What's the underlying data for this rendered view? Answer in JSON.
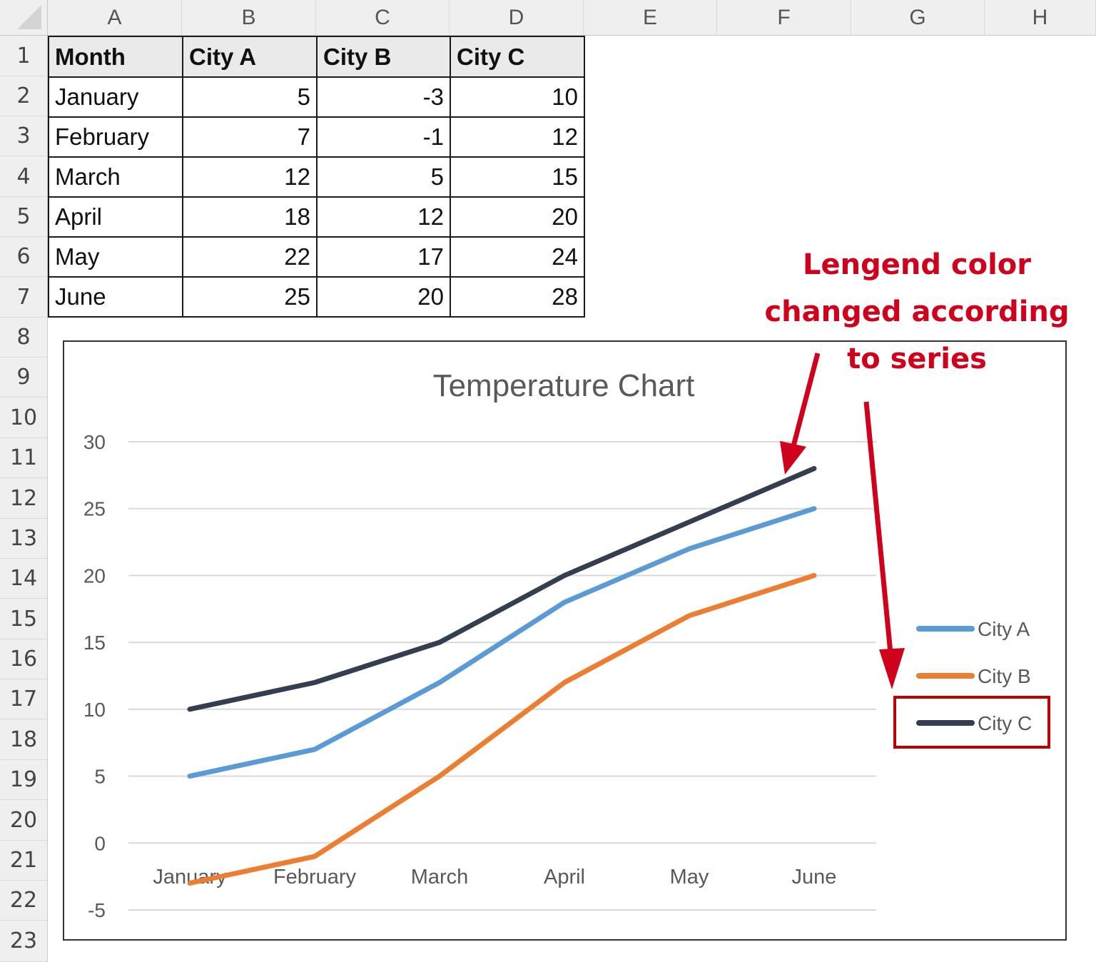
{
  "spreadsheet": {
    "columns": [
      "A",
      "B",
      "C",
      "D",
      "E",
      "F",
      "G",
      "H"
    ],
    "rows": [
      "1",
      "2",
      "3",
      "4",
      "5",
      "6",
      "7",
      "8",
      "9",
      "10",
      "11",
      "12",
      "13",
      "14",
      "15",
      "16",
      "17",
      "18",
      "19",
      "20",
      "21",
      "22",
      "23"
    ],
    "table": {
      "headers": [
        "Month",
        "City A",
        "City B",
        "City C"
      ],
      "rows": [
        [
          "January",
          "5",
          "-3",
          "10"
        ],
        [
          "February",
          "7",
          "-1",
          "12"
        ],
        [
          "March",
          "12",
          "5",
          "15"
        ],
        [
          "April",
          "18",
          "12",
          "20"
        ],
        [
          "May",
          "22",
          "17",
          "24"
        ],
        [
          "June",
          "25",
          "20",
          "28"
        ]
      ]
    }
  },
  "annotation": {
    "line1": "Lengend color",
    "line2": "changed according",
    "line3": "to series",
    "color": "#d0021b"
  },
  "chart_data": {
    "type": "line",
    "title": "Temperature Chart",
    "categories": [
      "January",
      "February",
      "March",
      "April",
      "May",
      "June"
    ],
    "series": [
      {
        "name": "City A",
        "values": [
          5,
          7,
          12,
          18,
          22,
          25
        ],
        "color": "#5b9bd5"
      },
      {
        "name": "City B",
        "values": [
          -3,
          -1,
          5,
          12,
          17,
          20
        ],
        "color": "#ed7d31"
      },
      {
        "name": "City C",
        "values": [
          10,
          12,
          15,
          20,
          24,
          28
        ],
        "color": "#333f50"
      }
    ],
    "yticks": [
      "30",
      "25",
      "20",
      "15",
      "10",
      "5",
      "0",
      "-5"
    ],
    "ylim": [
      -5,
      30
    ],
    "xlabel": "",
    "ylabel": "",
    "grid": true,
    "legend_position": "right",
    "highlighted_legend_entry": "City C"
  }
}
